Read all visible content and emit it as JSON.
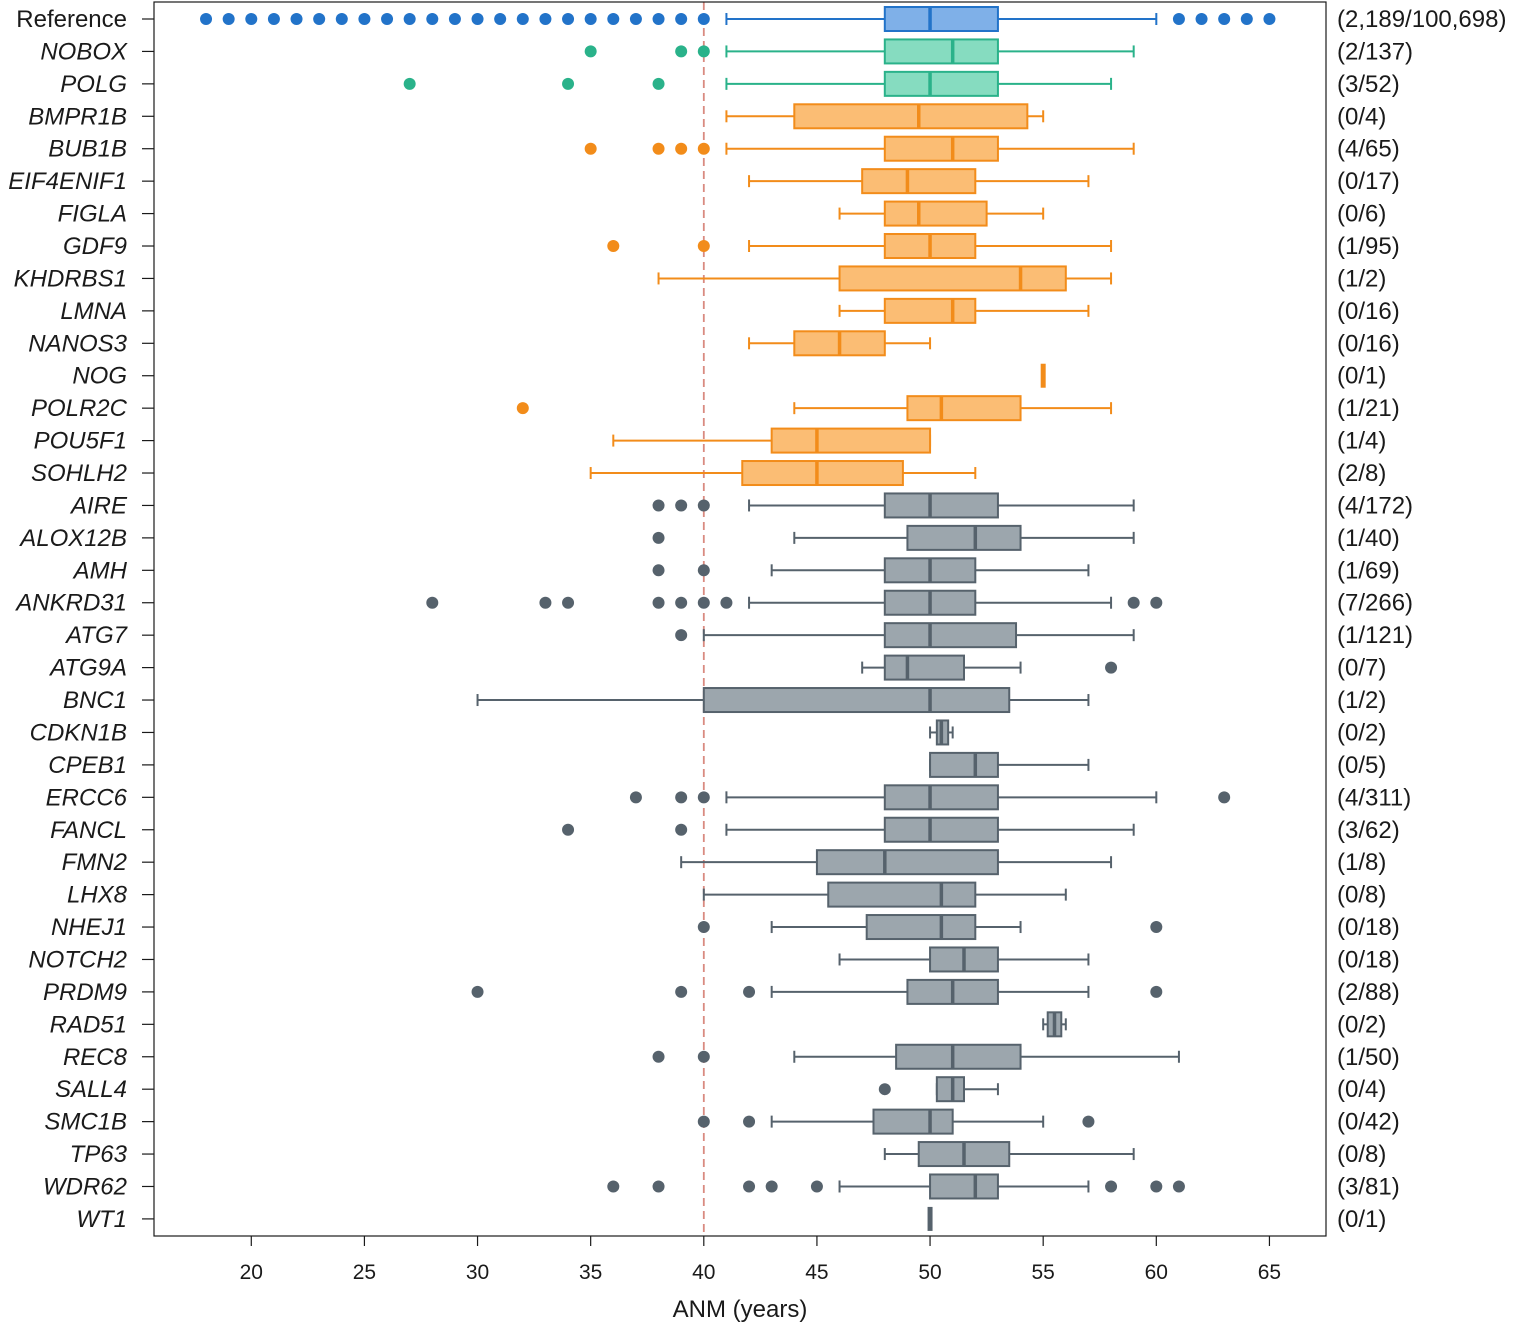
{
  "chart_data": {
    "type": "boxplot",
    "orientation": "horizontal",
    "xlabel": "ANM (years)",
    "xlim": [
      15.7,
      67.5
    ],
    "xticks": [
      20,
      25,
      30,
      35,
      40,
      45,
      50,
      55,
      60,
      65
    ],
    "reference_line": 40,
    "colors": {
      "reference": "#2273c9",
      "reference_fill": "#7fb0e8",
      "teal": "#2ab28a",
      "teal_fill": "#86dcc0",
      "orange": "#f28c1a",
      "orange_fill": "#fbbd74",
      "gray": "#56626c",
      "gray_fill": "#9ca6ad",
      "refline": "#d98a80"
    },
    "series": [
      {
        "gene": "Reference",
        "count": "(2,189/100,698)",
        "group": "reference",
        "whisker": [
          41,
          60
        ],
        "box": [
          48,
          53
        ],
        "median": 50,
        "outliers": [
          18,
          19,
          20,
          21,
          22,
          23,
          24,
          25,
          26,
          27,
          28,
          29,
          30,
          31,
          32,
          33,
          34,
          35,
          36,
          37,
          38,
          39,
          40,
          61,
          62,
          63,
          64,
          65
        ]
      },
      {
        "gene": "NOBOX",
        "count": "(2/137)",
        "group": "teal",
        "whisker": [
          41,
          59
        ],
        "box": [
          48,
          53
        ],
        "median": 51,
        "outliers": [
          35,
          39,
          40
        ]
      },
      {
        "gene": "POLG",
        "count": "(3/52)",
        "group": "teal",
        "whisker": [
          41,
          58
        ],
        "box": [
          48,
          53
        ],
        "median": 50,
        "outliers": [
          27,
          34,
          38
        ]
      },
      {
        "gene": "BMPR1B",
        "count": "(0/4)",
        "group": "orange",
        "whisker": [
          41,
          55
        ],
        "box": [
          44,
          54.3
        ],
        "median": 49.5,
        "outliers": []
      },
      {
        "gene": "BUB1B",
        "count": "(4/65)",
        "group": "orange",
        "whisker": [
          41,
          59
        ],
        "box": [
          48,
          53
        ],
        "median": 51,
        "outliers": [
          35,
          38,
          39,
          40
        ]
      },
      {
        "gene": "EIF4ENIF1",
        "count": "(0/17)",
        "group": "orange",
        "whisker": [
          42,
          57
        ],
        "box": [
          47,
          52
        ],
        "median": 49,
        "outliers": []
      },
      {
        "gene": "FIGLA",
        "count": "(0/6)",
        "group": "orange",
        "whisker": [
          46,
          55
        ],
        "box": [
          48,
          52.5
        ],
        "median": 49.5,
        "outliers": []
      },
      {
        "gene": "GDF9",
        "count": "(1/95)",
        "group": "orange",
        "whisker": [
          42,
          58
        ],
        "box": [
          48,
          52
        ],
        "median": 50,
        "outliers": [
          36,
          40
        ]
      },
      {
        "gene": "KHDRBS1",
        "count": "(1/2)",
        "group": "orange",
        "whisker": [
          38,
          58
        ],
        "box": [
          46,
          56
        ],
        "median": 54,
        "outliers": []
      },
      {
        "gene": "LMNA",
        "count": "(0/16)",
        "group": "orange",
        "whisker": [
          46,
          57
        ],
        "box": [
          48,
          52
        ],
        "median": 51,
        "outliers": []
      },
      {
        "gene": "NANOS3",
        "count": "(0/16)",
        "group": "orange",
        "whisker": [
          42,
          50
        ],
        "box": [
          44,
          48
        ],
        "median": 46,
        "outliers": []
      },
      {
        "gene": "NOG",
        "count": "(0/1)",
        "group": "orange",
        "whisker": [
          55,
          55
        ],
        "box": [
          55,
          55
        ],
        "median": 55,
        "outliers": []
      },
      {
        "gene": "POLR2C",
        "count": "(1/21)",
        "group": "orange",
        "whisker": [
          44,
          58
        ],
        "box": [
          49,
          54
        ],
        "median": 50.5,
        "outliers": [
          32
        ]
      },
      {
        "gene": "POU5F1",
        "count": "(1/4)",
        "group": "orange",
        "whisker": [
          36,
          50
        ],
        "box": [
          43,
          50
        ],
        "median": 45,
        "outliers": []
      },
      {
        "gene": "SOHLH2",
        "count": "(2/8)",
        "group": "orange",
        "whisker": [
          35,
          52
        ],
        "box": [
          41.7,
          48.8
        ],
        "median": 45,
        "outliers": []
      },
      {
        "gene": "AIRE",
        "count": "(4/172)",
        "group": "gray",
        "whisker": [
          42,
          59
        ],
        "box": [
          48,
          53
        ],
        "median": 50,
        "outliers": [
          38,
          39,
          40
        ]
      },
      {
        "gene": "ALOX12B",
        "count": "(1/40)",
        "group": "gray",
        "whisker": [
          44,
          59
        ],
        "box": [
          49,
          54
        ],
        "median": 52,
        "outliers": [
          38
        ]
      },
      {
        "gene": "AMH",
        "count": "(1/69)",
        "group": "gray",
        "whisker": [
          43,
          57
        ],
        "box": [
          48,
          52
        ],
        "median": 50,
        "outliers": [
          38,
          40
        ]
      },
      {
        "gene": "ANKRD31",
        "count": "(7/266)",
        "group": "gray",
        "whisker": [
          42,
          58
        ],
        "box": [
          48,
          52
        ],
        "median": 50,
        "outliers": [
          28,
          33,
          34,
          38,
          39,
          40,
          41,
          59,
          60
        ]
      },
      {
        "gene": "ATG7",
        "count": "(1/121)",
        "group": "gray",
        "whisker": [
          40,
          59
        ],
        "box": [
          48,
          53.8
        ],
        "median": 50,
        "outliers": [
          39
        ]
      },
      {
        "gene": "ATG9A",
        "count": "(0/7)",
        "group": "gray",
        "whisker": [
          47,
          54
        ],
        "box": [
          48,
          51.5
        ],
        "median": 49,
        "outliers": [
          58
        ]
      },
      {
        "gene": "BNC1",
        "count": "(1/2)",
        "group": "gray",
        "whisker": [
          30,
          57
        ],
        "box": [
          40,
          53.5
        ],
        "median": 50,
        "outliers": []
      },
      {
        "gene": "CDKN1B",
        "count": "(0/2)",
        "group": "gray",
        "whisker": [
          50,
          51
        ],
        "box": [
          50.3,
          50.8
        ],
        "median": 50.5,
        "outliers": []
      },
      {
        "gene": "CPEB1",
        "count": "(0/5)",
        "group": "gray",
        "whisker": [
          50,
          57
        ],
        "box": [
          50,
          53
        ],
        "median": 52,
        "outliers": []
      },
      {
        "gene": "ERCC6",
        "count": "(4/311)",
        "group": "gray",
        "whisker": [
          41,
          60
        ],
        "box": [
          48,
          53
        ],
        "median": 50,
        "outliers": [
          37,
          39,
          40,
          63
        ]
      },
      {
        "gene": "FANCL",
        "count": "(3/62)",
        "group": "gray",
        "whisker": [
          41,
          59
        ],
        "box": [
          48,
          53
        ],
        "median": 50,
        "outliers": [
          34,
          39
        ]
      },
      {
        "gene": "FMN2",
        "count": "(1/8)",
        "group": "gray",
        "whisker": [
          39,
          58
        ],
        "box": [
          45,
          53
        ],
        "median": 48,
        "outliers": []
      },
      {
        "gene": "LHX8",
        "count": "(0/8)",
        "group": "gray",
        "whisker": [
          40,
          56
        ],
        "box": [
          45.5,
          52
        ],
        "median": 50.5,
        "outliers": []
      },
      {
        "gene": "NHEJ1",
        "count": "(0/18)",
        "group": "gray",
        "whisker": [
          43,
          54
        ],
        "box": [
          47.2,
          52
        ],
        "median": 50.5,
        "outliers": [
          40,
          60
        ]
      },
      {
        "gene": "NOTCH2",
        "count": "(0/18)",
        "group": "gray",
        "whisker": [
          46,
          57
        ],
        "box": [
          50,
          53
        ],
        "median": 51.5,
        "outliers": []
      },
      {
        "gene": "PRDM9",
        "count": "(2/88)",
        "group": "gray",
        "whisker": [
          43,
          57
        ],
        "box": [
          49,
          53
        ],
        "median": 51,
        "outliers": [
          30,
          39,
          42,
          60
        ]
      },
      {
        "gene": "RAD51",
        "count": "(0/2)",
        "group": "gray",
        "whisker": [
          55,
          56
        ],
        "box": [
          55.2,
          55.8
        ],
        "median": 55.5,
        "outliers": []
      },
      {
        "gene": "REC8",
        "count": "(1/50)",
        "group": "gray",
        "whisker": [
          44,
          61
        ],
        "box": [
          48.5,
          54
        ],
        "median": 51,
        "outliers": [
          38,
          40
        ]
      },
      {
        "gene": "SALL4",
        "count": "(0/4)",
        "group": "gray",
        "whisker": [
          50.3,
          53
        ],
        "box": [
          50.3,
          51.5
        ],
        "median": 51,
        "outliers": [
          48
        ]
      },
      {
        "gene": "SMC1B",
        "count": "(0/42)",
        "group": "gray",
        "whisker": [
          43,
          55
        ],
        "box": [
          47.5,
          51
        ],
        "median": 50,
        "outliers": [
          40,
          42,
          57
        ]
      },
      {
        "gene": "TP63",
        "count": "(0/8)",
        "group": "gray",
        "whisker": [
          48,
          59
        ],
        "box": [
          49.5,
          53.5
        ],
        "median": 51.5,
        "outliers": []
      },
      {
        "gene": "WDR62",
        "count": "(3/81)",
        "group": "gray",
        "whisker": [
          46,
          57
        ],
        "box": [
          50,
          53
        ],
        "median": 52,
        "outliers": [
          36,
          38,
          42,
          43,
          45,
          58,
          60,
          61
        ]
      },
      {
        "gene": "WT1",
        "count": "(0/1)",
        "group": "gray",
        "whisker": [
          50,
          50
        ],
        "box": [
          50,
          50
        ],
        "median": 50,
        "outliers": []
      }
    ]
  }
}
